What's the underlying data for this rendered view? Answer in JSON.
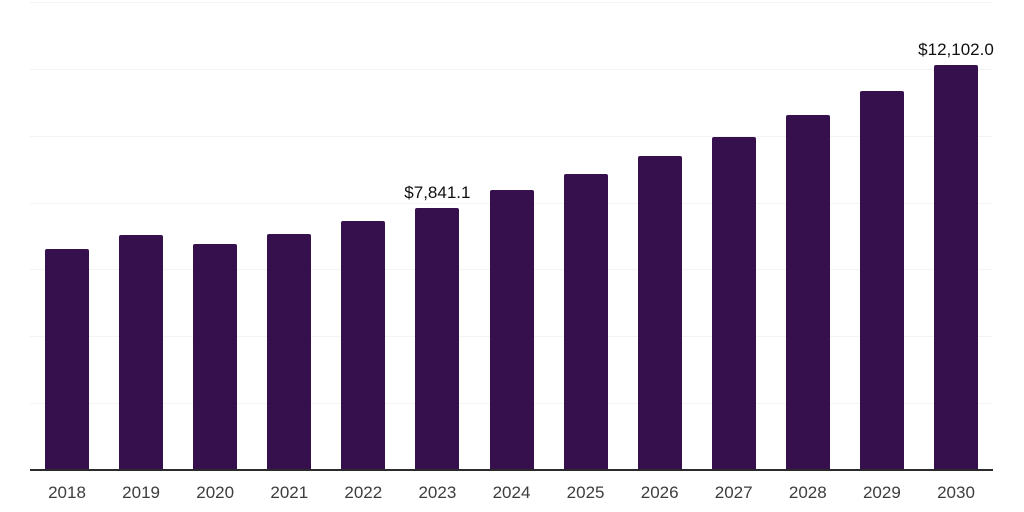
{
  "chart_data": {
    "type": "bar",
    "title": "",
    "xlabel": "",
    "ylabel": "",
    "categories": [
      "2018",
      "2019",
      "2020",
      "2021",
      "2022",
      "2023",
      "2024",
      "2025",
      "2026",
      "2027",
      "2028",
      "2029",
      "2030"
    ],
    "values": [
      6620,
      7020,
      6750,
      7070,
      7460,
      7841.1,
      8370,
      8870,
      9390,
      9960,
      10610,
      11340,
      12102.0
    ],
    "data_labels": [
      "",
      "",
      "",
      "",
      "",
      "$7,841.1",
      "",
      "",
      "",
      "",
      "",
      "",
      "$12,102.0"
    ],
    "ylim": [
      0,
      14000
    ],
    "gridline_step": 2000,
    "grid": "horizontal-only",
    "y_tick_labels_visible": false,
    "legend": "none"
  },
  "colors": {
    "bar": "#36104D",
    "gridline": "#f3f3f4",
    "axis": "#2b2b2b",
    "tick_label": "#3d3d3d",
    "data_label": "#101010",
    "background": "#ffffff"
  }
}
